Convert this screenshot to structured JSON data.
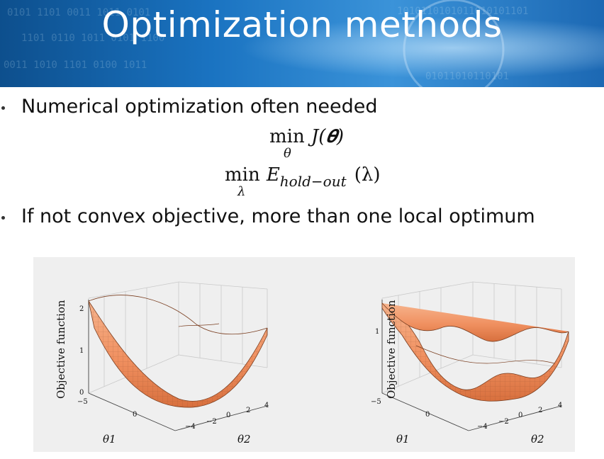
{
  "slide": {
    "title": "Optimization methods",
    "bullets": [
      "Numerical optimization often needed",
      "If not convex objective, more than one local optimum"
    ],
    "eq1": {
      "op": "min",
      "sub": "θ",
      "expr": "J(𝜽)"
    },
    "eq2": {
      "op": "min",
      "sub": "λ",
      "fn": "E",
      "fn_sub": "hold−out",
      "arg": "(λ)"
    }
  },
  "plots": [
    {
      "zlabel": "Objective function",
      "xlabel": "θ1",
      "ylabel": "θ2",
      "z_ticks": [
        "0",
        "1",
        "2"
      ],
      "x_ticks": [
        "−5",
        "0"
      ],
      "y_ticks": [
        "−4",
        "−2",
        "0",
        "2",
        "4"
      ]
    },
    {
      "zlabel": "Objective function",
      "xlabel": "θ1",
      "ylabel": "θ2",
      "z_ticks": [
        "1"
      ],
      "x_ticks": [
        "−5",
        "0"
      ],
      "y_ticks": [
        "−4",
        "−2",
        "0",
        "2",
        "4"
      ]
    }
  ],
  "colors": {
    "banner": "#1a73c1",
    "surface": "#f08a50"
  }
}
